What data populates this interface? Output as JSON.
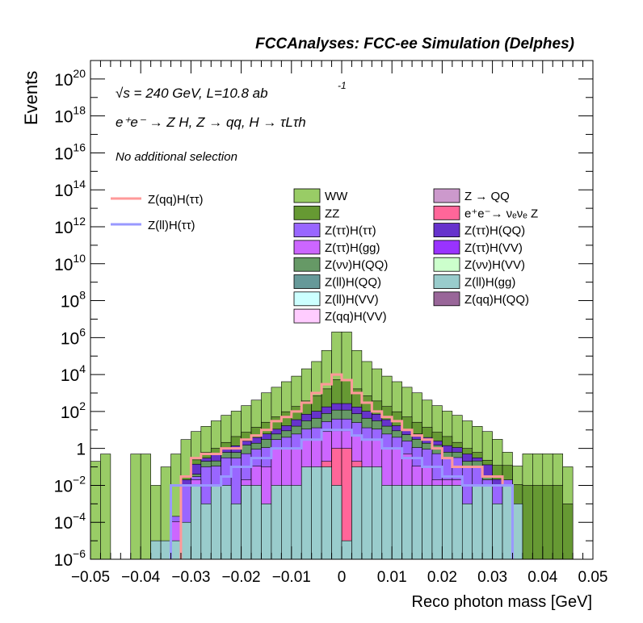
{
  "chart_data": {
    "type": "bar",
    "title": "FCCAnalyses: FCC-ee Simulation (Delphes)",
    "xlabel": "Reco photon mass [GeV]",
    "ylabel": "Events",
    "xlim": [
      -0.05,
      0.05
    ],
    "ylim": [
      1e-06,
      1e+21
    ],
    "yscale": "log",
    "x_tick_labels": [
      "−0.05",
      "−0.04",
      "−0.03",
      "−0.02",
      "−0.01",
      "0",
      "0.01",
      "0.02",
      "0.03",
      "0.04",
      "0.05"
    ],
    "y_tick_labels": [
      "10^-6",
      "10^-4",
      "10^-2",
      "1",
      "10^2",
      "10^4",
      "10^6",
      "10^8",
      "10^10",
      "10^12",
      "10^14",
      "10^16",
      "10^18",
      "10^20"
    ],
    "annotations": {
      "energy_line": "√s = 240 GeV, L=10.8 ab",
      "energy_exponent": "-1",
      "process_line": "e⁺e⁻ → Z H, Z → qq, H → τLτh",
      "selection": "No additional selection"
    },
    "bin_edges": [
      -0.05,
      -0.048,
      -0.046,
      -0.044,
      -0.042,
      -0.04,
      -0.038,
      -0.036,
      -0.034,
      -0.032,
      -0.03,
      -0.028,
      -0.026,
      -0.024,
      -0.022,
      -0.02,
      -0.018,
      -0.016,
      -0.014,
      -0.012,
      -0.01,
      -0.008,
      -0.006,
      -0.004,
      -0.002,
      0,
      0.002,
      0.004,
      0.006,
      0.008,
      0.01,
      0.012,
      0.014,
      0.016,
      0.018,
      0.02,
      0.022,
      0.024,
      0.026,
      0.028,
      0.03,
      0.032,
      0.034,
      0.036,
      0.038,
      0.04,
      0.042,
      0.044,
      0.046,
      0.048,
      0.05
    ],
    "stack_layers": [
      {
        "name": "Z(ll)H(gg)",
        "color": "#99CCCC",
        "values": [
          null,
          null,
          null,
          null,
          null,
          null,
          1e-05,
          1e-05,
          1e-05,
          0.0001,
          0.01,
          0.001,
          0.01,
          0.01,
          0.001,
          0.01,
          0.01,
          0.001,
          0.01,
          0.01,
          0.01,
          0.1,
          0.1,
          0.1,
          0.01,
          1e-05,
          0.1,
          0.1,
          0.1,
          0.01,
          0.01,
          0.01,
          0.01,
          0.01,
          0.01,
          0.01,
          0.01,
          0.001,
          0.01,
          0.01,
          0.001,
          0.01,
          0.001,
          null,
          null,
          null,
          null,
          null,
          null,
          null
        ]
      },
      {
        "name": "e⁺e⁻ → νₑνₑ Z",
        "color": "#FF6699",
        "values": [
          null,
          null,
          null,
          null,
          null,
          null,
          null,
          null,
          null,
          null,
          null,
          null,
          null,
          null,
          null,
          null,
          null,
          null,
          null,
          null,
          null,
          null,
          null,
          0.1,
          1,
          1,
          0.1,
          null,
          null,
          null,
          null,
          null,
          null,
          null,
          null,
          null,
          null,
          null,
          null,
          null,
          null,
          null,
          null,
          null,
          null,
          null,
          null,
          null,
          null,
          null
        ]
      },
      {
        "name": "Z(ττ)H(gg)",
        "color": "#CC66FF",
        "values": [
          null,
          null,
          null,
          null,
          null,
          null,
          null,
          null,
          0.0001,
          null,
          0.01,
          null,
          null,
          null,
          null,
          0.01,
          0.1,
          0.1,
          1,
          1,
          1,
          3,
          3,
          8,
          8,
          8,
          5,
          3,
          3,
          1,
          1,
          0.5,
          0.1,
          0.1,
          0.01,
          0.01,
          0.01,
          null,
          null,
          null,
          null,
          null,
          null,
          null,
          null,
          null,
          null,
          null,
          null,
          null
        ]
      },
      {
        "name": "Z(ττ)H(ττ)",
        "color": "#9966FF",
        "values": [
          null,
          null,
          null,
          null,
          null,
          null,
          null,
          null,
          0.0001,
          0.01,
          0.01,
          0.1,
          0.1,
          0.3,
          0.3,
          0.5,
          0.8,
          1,
          2,
          3,
          5,
          8,
          10,
          20,
          30,
          30,
          20,
          10,
          8,
          5,
          3,
          2,
          1,
          0.8,
          0.5,
          0.3,
          0.3,
          0.1,
          0.1,
          0.01,
          0.01,
          0.01,
          null,
          null,
          null,
          null,
          null,
          null,
          null,
          null
        ]
      },
      {
        "name": "Z(νν)H(QQ)",
        "color": "#669966",
        "values": [
          null,
          null,
          null,
          null,
          null,
          null,
          null,
          null,
          null,
          null,
          0.01,
          0.1,
          0.1,
          0.3,
          0.3,
          1,
          1,
          2,
          3,
          5,
          10,
          20,
          30,
          50,
          80,
          80,
          50,
          30,
          20,
          10,
          5,
          3,
          2,
          1,
          1,
          0.3,
          0.3,
          0.1,
          0.1,
          0.01,
          null,
          null,
          null,
          null,
          null,
          null,
          null,
          null,
          null,
          null
        ]
      },
      {
        "name": "Z(ττ)H(QQ)",
        "color": "#6633CC",
        "values": [
          null,
          null,
          null,
          null,
          null,
          null,
          null,
          null,
          null,
          0.01,
          0.1,
          0.1,
          0.3,
          0.5,
          0.8,
          1,
          2,
          3,
          5,
          8,
          20,
          40,
          60,
          100,
          150,
          150,
          100,
          60,
          40,
          20,
          8,
          5,
          3,
          2,
          1,
          0.8,
          0.5,
          0.3,
          0.1,
          0.1,
          0.01,
          null,
          null,
          null,
          null,
          null,
          null,
          null,
          null,
          null
        ]
      },
      {
        "name": "ZZ",
        "color": "#669933",
        "values": [
          null,
          null,
          null,
          null,
          null,
          null,
          null,
          null,
          null,
          0.01,
          0.1,
          0.3,
          0.5,
          1,
          3,
          5,
          10,
          20,
          40,
          80,
          150,
          300,
          600,
          1500,
          5000,
          5000,
          1500,
          600,
          300,
          150,
          80,
          40,
          20,
          10,
          5,
          3,
          1,
          0.5,
          0.3,
          0.1,
          0.1,
          0.1,
          0.01,
          0.01,
          0.01,
          0.01,
          0.01,
          0.001,
          null,
          null
        ]
      },
      {
        "name": "WW",
        "color": "#99CC66",
        "values": [
          0.2,
          0.5,
          null,
          null,
          0.5,
          0.5,
          0.01,
          0.1,
          0.5,
          3,
          8,
          15,
          30,
          60,
          100,
          200,
          400,
          1000,
          2000,
          4000,
          8000,
          20000,
          50000,
          200000,
          2000000,
          2000000,
          200000,
          50000,
          20000,
          8000,
          4000,
          2000,
          1000,
          400,
          200,
          100,
          60,
          30,
          15,
          8,
          3,
          0.5,
          0.1,
          0.5,
          0.5,
          0.5,
          0.5,
          0.1,
          null,
          null
        ]
      }
    ],
    "line_series": [
      {
        "name": "Z(qq)H(ττ)",
        "color": "#FF9999",
        "values": [
          null,
          null,
          null,
          null,
          null,
          null,
          null,
          null,
          null,
          0.03,
          0.3,
          0.5,
          0.5,
          1,
          1,
          3,
          5,
          10,
          30,
          50,
          100,
          300,
          1000,
          3000,
          10000,
          5000,
          1000,
          300,
          100,
          50,
          30,
          10,
          5,
          3,
          1,
          0.3,
          0.1,
          0.1,
          0.1,
          0.03,
          0.03,
          0.01,
          null,
          null,
          null,
          null,
          null,
          null,
          null,
          null
        ]
      },
      {
        "name": "Z(ll)H(ττ)",
        "color": "#9999FF",
        "values": [
          null,
          null,
          null,
          null,
          null,
          null,
          null,
          null,
          0.01,
          0.01,
          0.01,
          0.01,
          0.01,
          0.03,
          0.1,
          0.1,
          0.3,
          0.3,
          1,
          1,
          1,
          3,
          3,
          10,
          10,
          10,
          5,
          3,
          3,
          1,
          1,
          0.3,
          0.3,
          0.1,
          0.1,
          0.03,
          0.03,
          0.01,
          0.01,
          0.01,
          0.01,
          0.01,
          null,
          null,
          null,
          null,
          null,
          null,
          null,
          null
        ]
      }
    ],
    "legend": {
      "lines": [
        {
          "label": "Z(qq)H(ττ)",
          "color": "#FF9999"
        },
        {
          "label": "Z(ll)H(ττ)",
          "color": "#9999FF"
        }
      ],
      "col1": [
        {
          "label": "WW",
          "color": "#99CC66"
        },
        {
          "label": "ZZ",
          "color": "#669933"
        },
        {
          "label": "Z(ττ)H(ττ)",
          "color": "#9966FF"
        },
        {
          "label": "Z(ττ)H(gg)",
          "color": "#CC66FF"
        },
        {
          "label": "Z(νν)H(QQ)",
          "color": "#669966"
        },
        {
          "label": "Z(ll)H(QQ)",
          "color": "#669999"
        },
        {
          "label": "Z(ll)H(VV)",
          "color": "#CCFFFF"
        },
        {
          "label": "Z(qq)H(VV)",
          "color": "#FFCCFF"
        }
      ],
      "col2": [
        {
          "label": "Z → QQ",
          "color": "#CC99CC"
        },
        {
          "label": "e⁺e⁻→ νₑνₑ Z",
          "color": "#FF6699"
        },
        {
          "label": "Z(ττ)H(QQ)",
          "color": "#6633CC"
        },
        {
          "label": "Z(ττ)H(VV)",
          "color": "#9933FF"
        },
        {
          "label": "Z(νν)H(VV)",
          "color": "#CCFFCC"
        },
        {
          "label": "Z(ll)H(gg)",
          "color": "#99CCCC"
        },
        {
          "label": "Z(qq)H(QQ)",
          "color": "#996699"
        }
      ]
    }
  }
}
